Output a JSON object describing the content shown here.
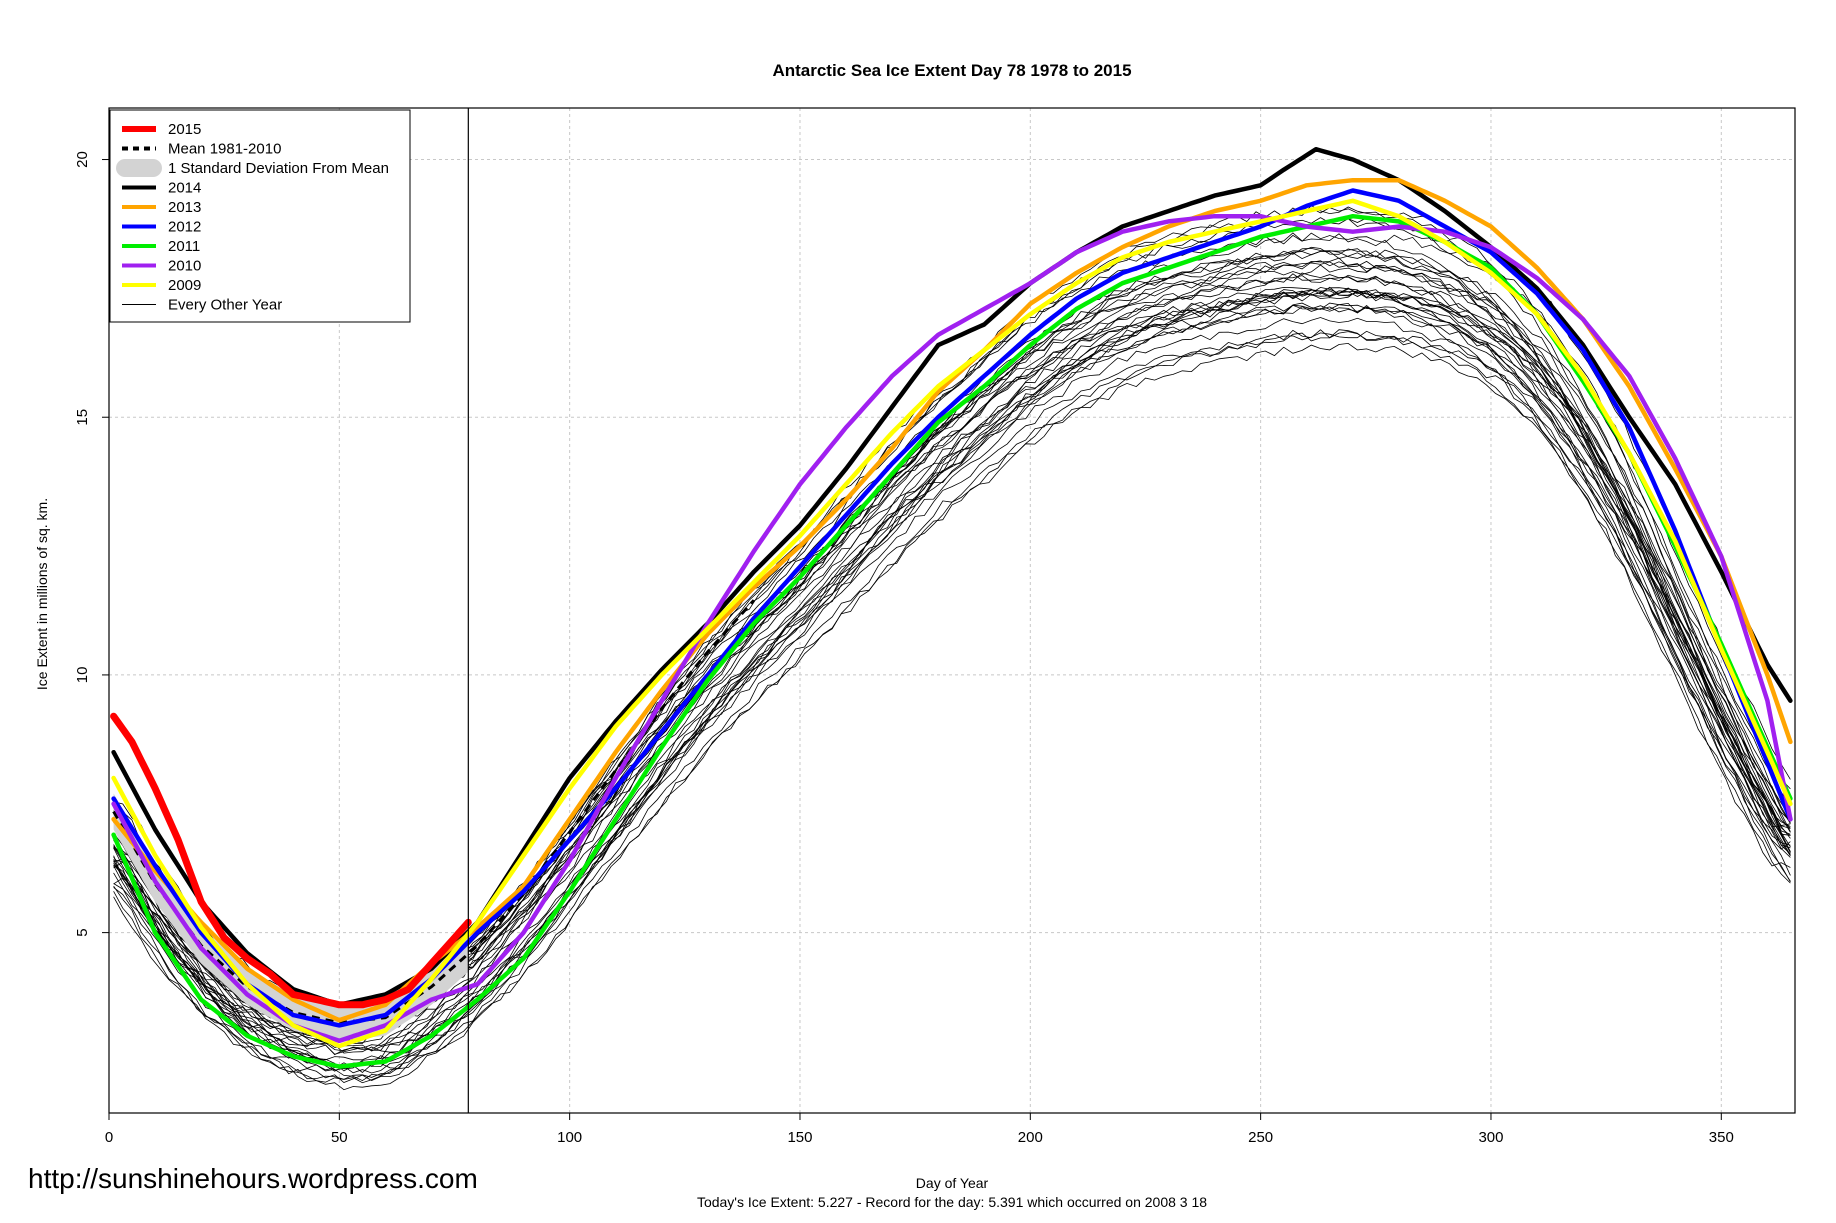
{
  "url_text": "http://sunshinehours.wordpress.com",
  "footer_text": "Today's Ice Extent: 5.227  - Record for the day: 5.391 which occurred on 2008 3 18",
  "colors": {
    "y2015": "#ff0000",
    "mean": "#000000",
    "sd_band": "#d3d3d3",
    "y2014": "#000000",
    "y2013": "#ffa500",
    "y2012": "#0000ff",
    "y2011": "#00ee00",
    "y2010": "#a020f0",
    "y2009": "#ffff00",
    "other": "#000000",
    "grid": "#c8c8c8"
  },
  "chart_data": {
    "type": "line",
    "title": "Antarctic Sea Ice Extent Day 78 1978 to 2015",
    "xlabel": "Day of Year",
    "ylabel": "Ice Extent in millions of sq. km.",
    "xlim": [
      0,
      366
    ],
    "ylim": [
      1.5,
      21
    ],
    "x_ticks": [
      0,
      50,
      100,
      150,
      200,
      250,
      300,
      350
    ],
    "y_ticks": [
      5,
      10,
      15,
      20
    ],
    "grid": true,
    "legend_position": "top-left",
    "vline_day": 78,
    "legend": [
      "2015",
      "Mean 1981-2010",
      "1 Standard Deviation From Mean",
      "2014",
      "2013",
      "2012",
      "2011",
      "2010",
      "2009",
      "Every Other Year"
    ],
    "series": [
      {
        "name": "2014",
        "color": "#000000",
        "width": 4.5,
        "x": [
          1,
          10,
          20,
          30,
          40,
          50,
          60,
          70,
          80,
          90,
          100,
          110,
          120,
          130,
          140,
          150,
          160,
          170,
          180,
          190,
          200,
          210,
          220,
          230,
          240,
          250,
          255,
          262,
          270,
          280,
          290,
          300,
          310,
          320,
          330,
          340,
          350,
          360,
          365
        ],
        "y": [
          8.5,
          7.0,
          5.6,
          4.6,
          3.9,
          3.6,
          3.8,
          4.3,
          5.2,
          6.6,
          8.0,
          9.1,
          10.1,
          11.0,
          12.0,
          12.9,
          14.0,
          15.2,
          16.4,
          16.8,
          17.6,
          18.2,
          18.7,
          19.0,
          19.3,
          19.5,
          19.8,
          20.2,
          20.0,
          19.6,
          19.0,
          18.3,
          17.5,
          16.4,
          15.0,
          13.7,
          12.0,
          10.2,
          9.5
        ]
      },
      {
        "name": "2013",
        "color": "#ffa500",
        "width": 4.5,
        "x": [
          1,
          10,
          20,
          30,
          40,
          50,
          60,
          70,
          80,
          90,
          100,
          110,
          120,
          130,
          140,
          150,
          160,
          170,
          180,
          190,
          200,
          210,
          220,
          230,
          240,
          250,
          260,
          270,
          280,
          290,
          300,
          310,
          320,
          330,
          340,
          350,
          360,
          365
        ],
        "y": [
          7.2,
          6.2,
          5.2,
          4.3,
          3.7,
          3.3,
          3.6,
          4.4,
          5.1,
          5.9,
          7.2,
          8.5,
          9.7,
          10.8,
          11.7,
          12.5,
          13.4,
          14.4,
          15.5,
          16.3,
          17.2,
          17.8,
          18.3,
          18.7,
          19.0,
          19.2,
          19.5,
          19.6,
          19.6,
          19.2,
          18.7,
          17.9,
          16.9,
          15.6,
          14.0,
          12.3,
          10.0,
          8.7
        ]
      },
      {
        "name": "2012",
        "color": "#0000ff",
        "width": 4.5,
        "x": [
          1,
          10,
          20,
          30,
          40,
          50,
          60,
          70,
          80,
          90,
          100,
          110,
          120,
          130,
          140,
          150,
          160,
          170,
          180,
          190,
          200,
          210,
          220,
          230,
          240,
          250,
          260,
          270,
          280,
          290,
          300,
          310,
          320,
          330,
          340,
          350,
          360,
          365
        ],
        "y": [
          7.6,
          6.3,
          5.0,
          4.0,
          3.4,
          3.2,
          3.4,
          4.1,
          5.0,
          5.8,
          6.8,
          7.8,
          8.9,
          10.0,
          11.1,
          12.1,
          13.1,
          14.1,
          15.0,
          15.8,
          16.6,
          17.3,
          17.8,
          18.1,
          18.4,
          18.7,
          19.1,
          19.4,
          19.2,
          18.7,
          18.2,
          17.4,
          16.3,
          14.8,
          12.8,
          10.5,
          8.3,
          7.2
        ]
      },
      {
        "name": "2011",
        "color": "#00ee00",
        "width": 4.5,
        "x": [
          1,
          10,
          20,
          30,
          40,
          50,
          60,
          70,
          80,
          90,
          100,
          110,
          120,
          130,
          140,
          150,
          160,
          170,
          180,
          190,
          200,
          210,
          220,
          230,
          240,
          250,
          260,
          270,
          280,
          290,
          300,
          310,
          320,
          330,
          340,
          350,
          360,
          365
        ],
        "y": [
          6.9,
          5.0,
          3.7,
          3.0,
          2.6,
          2.4,
          2.5,
          3.0,
          3.7,
          4.5,
          5.8,
          7.2,
          8.6,
          9.9,
          11.0,
          11.9,
          12.9,
          13.9,
          14.9,
          15.6,
          16.4,
          17.1,
          17.6,
          17.9,
          18.2,
          18.5,
          18.7,
          18.9,
          18.8,
          18.4,
          17.9,
          17.0,
          15.7,
          14.3,
          12.5,
          10.6,
          8.6,
          7.6
        ]
      },
      {
        "name": "2010",
        "color": "#a020f0",
        "width": 4.5,
        "x": [
          1,
          10,
          20,
          30,
          40,
          50,
          60,
          70,
          80,
          90,
          100,
          110,
          120,
          130,
          140,
          150,
          160,
          170,
          180,
          190,
          200,
          210,
          220,
          230,
          240,
          250,
          260,
          270,
          280,
          290,
          300,
          310,
          320,
          330,
          340,
          350,
          360,
          365
        ],
        "y": [
          7.5,
          6.0,
          4.7,
          3.8,
          3.2,
          2.9,
          3.2,
          3.7,
          4.0,
          5.0,
          6.4,
          8.0,
          9.5,
          11.0,
          12.4,
          13.7,
          14.8,
          15.8,
          16.6,
          17.1,
          17.6,
          18.2,
          18.6,
          18.8,
          18.9,
          18.9,
          18.7,
          18.6,
          18.7,
          18.6,
          18.3,
          17.7,
          16.9,
          15.8,
          14.2,
          12.3,
          9.5,
          7.2
        ]
      },
      {
        "name": "2009",
        "color": "#ffff00",
        "width": 4.5,
        "x": [
          1,
          10,
          20,
          30,
          40,
          50,
          60,
          70,
          80,
          90,
          100,
          110,
          120,
          130,
          140,
          150,
          160,
          170,
          180,
          190,
          200,
          210,
          220,
          230,
          240,
          250,
          260,
          270,
          280,
          290,
          300,
          310,
          320,
          330,
          340,
          350,
          360,
          365
        ],
        "y": [
          8.0,
          6.5,
          5.1,
          4.0,
          3.2,
          2.8,
          3.1,
          4.1,
          5.2,
          6.5,
          7.8,
          9.0,
          10.0,
          10.9,
          11.8,
          12.7,
          13.7,
          14.7,
          15.6,
          16.3,
          17.0,
          17.6,
          18.1,
          18.4,
          18.6,
          18.8,
          19.0,
          19.2,
          18.9,
          18.4,
          17.8,
          17.0,
          15.8,
          14.3,
          12.6,
          10.5,
          8.5,
          7.5
        ]
      },
      {
        "name": "2015",
        "color": "#ff0000",
        "width": 7,
        "x": [
          1,
          5,
          10,
          15,
          20,
          25,
          30,
          35,
          40,
          45,
          50,
          55,
          60,
          65,
          70,
          75,
          78
        ],
        "y": [
          9.2,
          8.7,
          7.8,
          6.8,
          5.6,
          4.9,
          4.5,
          4.2,
          3.8,
          3.7,
          3.6,
          3.6,
          3.7,
          3.9,
          4.4,
          4.9,
          5.2
        ]
      }
    ]
  }
}
